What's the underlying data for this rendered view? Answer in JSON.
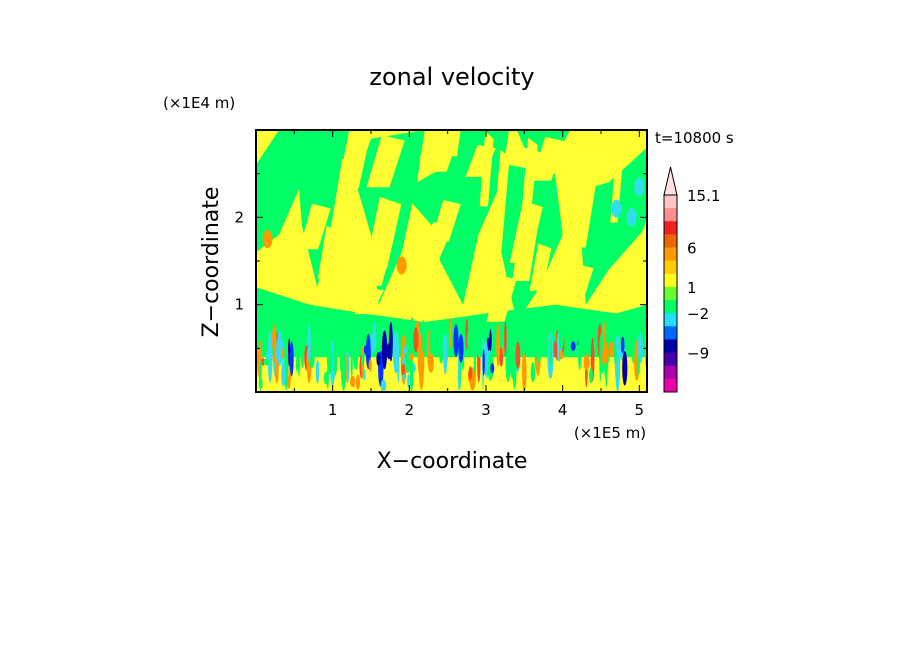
{
  "chart_data": {
    "type": "heatmap",
    "title": "zonal velocity",
    "xlabel": "X−coordinate",
    "ylabel": "Z−coordinate",
    "x_unit": "(×1E5 m)",
    "y_unit": "(×1E4 m)",
    "time_label": "t=10800 s",
    "x_ticks": [
      1,
      2,
      3,
      4,
      5
    ],
    "y_ticks": [
      1,
      2
    ],
    "x_tick_labels": [
      "1",
      "2",
      "3",
      "4",
      "5"
    ],
    "y_tick_labels": [
      "1",
      "2"
    ],
    "xlim": [
      0,
      5.1
    ],
    "ylim": [
      0,
      3.0
    ],
    "colorbar": {
      "labels": [
        "15.1",
        "6",
        "1",
        "−2",
        "−9"
      ],
      "label_values": [
        15.1,
        6,
        1,
        -2,
        -9
      ],
      "colors_top_to_bottom": [
        "#ffc4c4",
        "#ff8e8e",
        "#ee2222",
        "#ee6600",
        "#ff9900",
        "#ffcc00",
        "#ffff22",
        "#66ff33",
        "#00ff66",
        "#22ddff",
        "#0066ff",
        "#0000aa",
        "#4400aa",
        "#aa00aa",
        "#ee00aa"
      ],
      "extend_top": true
    },
    "palette": {
      "background": "#ffff33",
      "green": "#00ff66",
      "cyan": "#33ddee",
      "orange": "#ff9900",
      "red": "#ee5522",
      "blue": "#0033ff",
      "navy": "#0000aa"
    }
  }
}
